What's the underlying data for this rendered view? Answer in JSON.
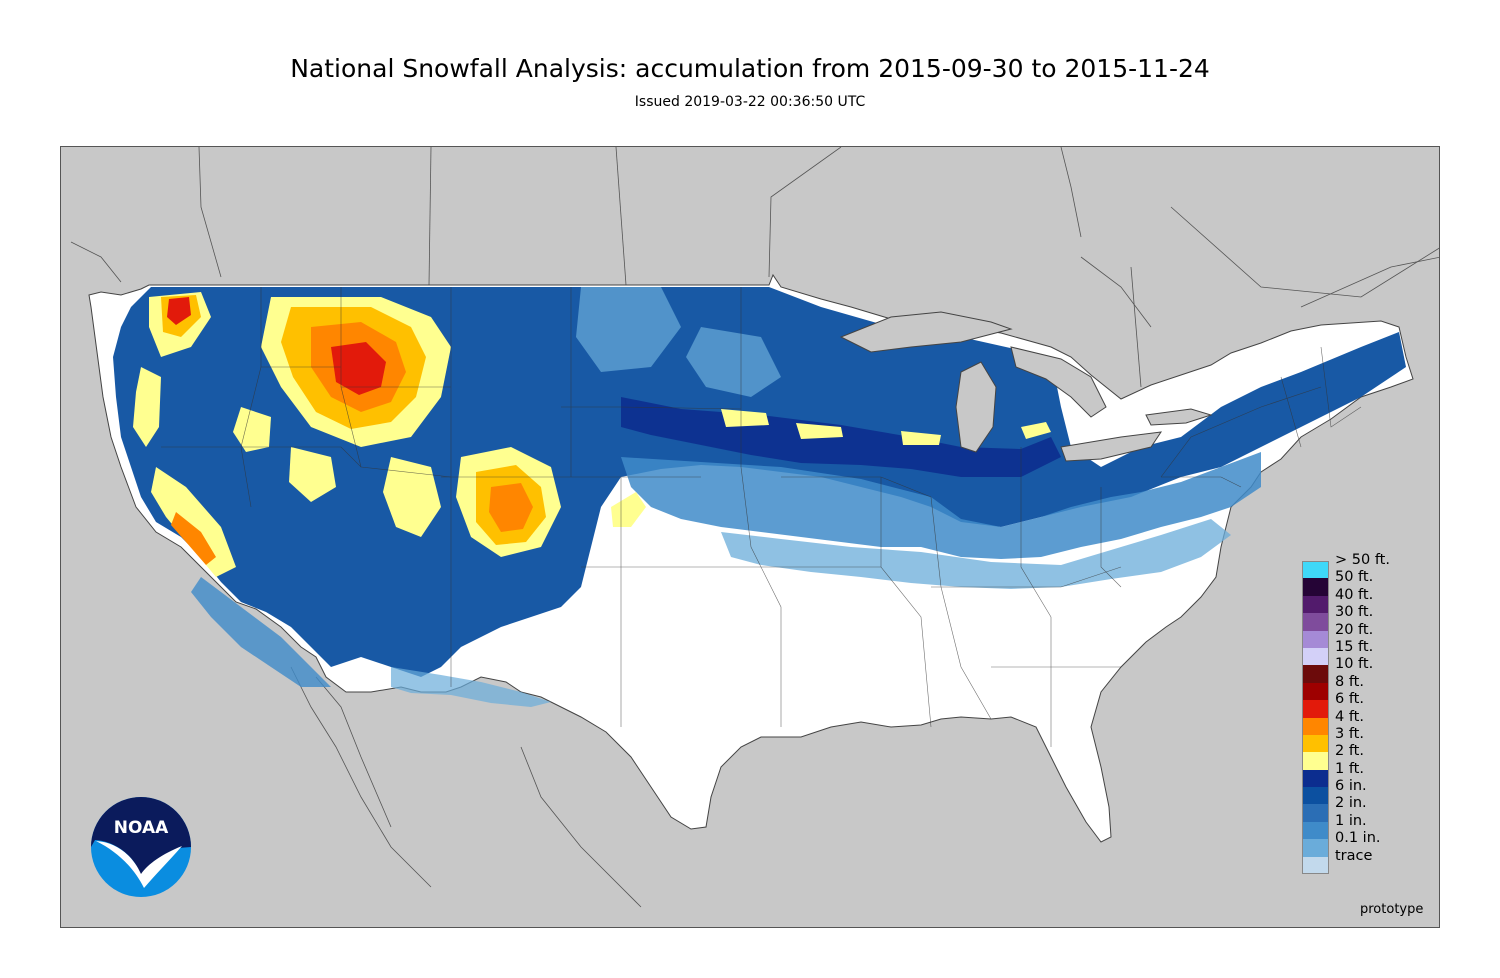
{
  "title": "National Snowfall Analysis: accumulation from 2015-09-30 to 2015-11-24",
  "subtitle": "Issued 2019-03-22 00:36:50 UTC",
  "footer_note": "prototype",
  "logo": {
    "text": "NOAA",
    "icon": "noaa-logo-icon"
  },
  "map": {
    "region": "contiguous-united-states",
    "background_color": "#c8c8c8",
    "land_color": "#ffffff"
  },
  "legend": [
    {
      "label": "> 50 ft.",
      "color": "#3fd8f8"
    },
    {
      "label": "50 ft.",
      "color": "#250436"
    },
    {
      "label": "40 ft.",
      "color": "#521b6c"
    },
    {
      "label": "30 ft.",
      "color": "#7f4c9c"
    },
    {
      "label": "20 ft.",
      "color": "#a58ad6"
    },
    {
      "label": "15 ft.",
      "color": "#d3d0f8"
    },
    {
      "label": "10 ft.",
      "color": "#6c0b0b"
    },
    {
      "label": "8 ft.",
      "color": "#9e0000"
    },
    {
      "label": "6 ft.",
      "color": "#e21a0b"
    },
    {
      "label": "4 ft.",
      "color": "#ff8600"
    },
    {
      "label": "3 ft.",
      "color": "#ffc000"
    },
    {
      "label": "2 ft.",
      "color": "#ffff90"
    },
    {
      "label": "1 ft.",
      "color": "#0c2d8f"
    },
    {
      "label": "6 in.",
      "color": "#0c50a0"
    },
    {
      "label": "2 in.",
      "color": "#2b6eb5"
    },
    {
      "label": "1 in.",
      "color": "#3f8bc9"
    },
    {
      "label": "0.1 in.",
      "color": "#6aacda"
    },
    {
      "label": "trace",
      "color": "#c2d9ec"
    }
  ]
}
